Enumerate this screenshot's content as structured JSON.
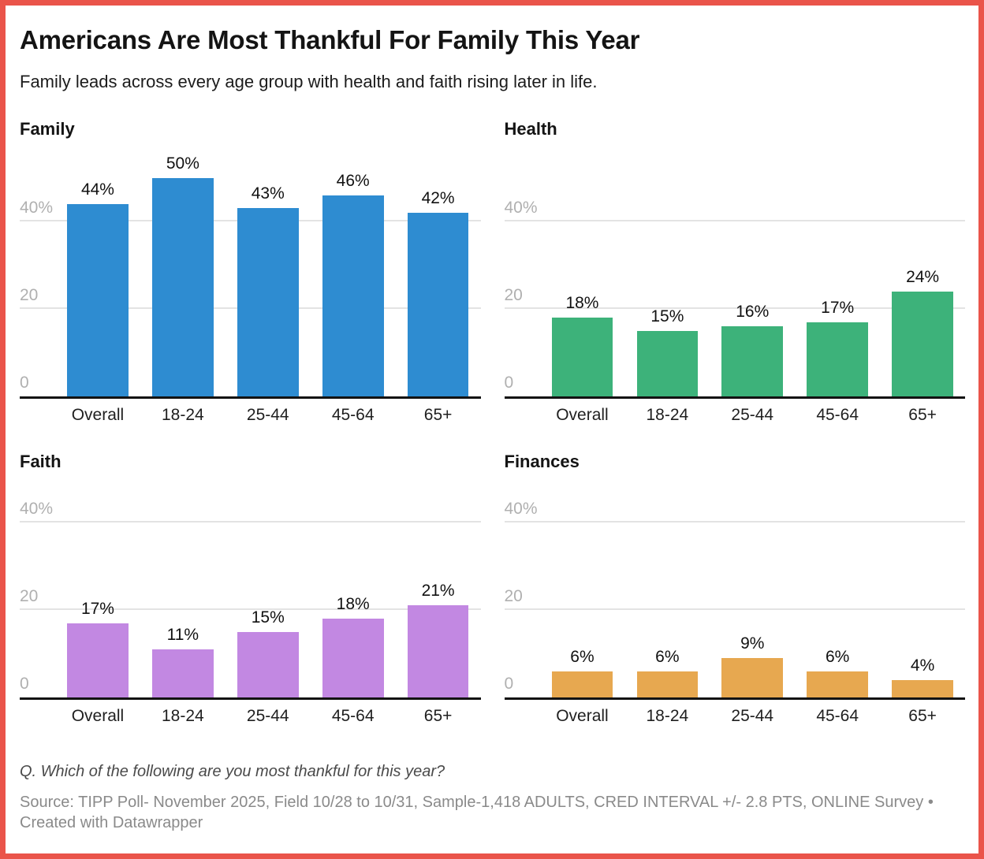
{
  "header": {
    "title": "Americans Are Most Thankful For Family This Year",
    "subtitle": "Family leads across every age group with health and faith rising later in life."
  },
  "chart_data": {
    "type": "bar",
    "unit": "percent",
    "categories": [
      "Overall",
      "18-24",
      "25-44",
      "45-64",
      "65+"
    ],
    "y_axis": {
      "ylim": [
        0,
        56
      ],
      "grid": "horizontal",
      "ticks": [
        {
          "value": 40,
          "label": "40%"
        },
        {
          "value": 20,
          "label": "20"
        },
        {
          "value": 0,
          "label": "0"
        }
      ]
    },
    "charts": [
      {
        "title": "Family",
        "color": "#2e8cd1",
        "values": [
          44,
          50,
          43,
          46,
          42
        ],
        "value_labels": [
          "44%",
          "50%",
          "43%",
          "46%",
          "42%"
        ]
      },
      {
        "title": "Health",
        "color": "#3db27a",
        "values": [
          18,
          15,
          16,
          17,
          24
        ],
        "value_labels": [
          "18%",
          "15%",
          "16%",
          "17%",
          "24%"
        ]
      },
      {
        "title": "Faith",
        "color": "#c288e2",
        "values": [
          17,
          11,
          15,
          18,
          21
        ],
        "value_labels": [
          "17%",
          "11%",
          "15%",
          "18%",
          "21%"
        ]
      },
      {
        "title": "Finances",
        "color": "#e7a850",
        "values": [
          6,
          6,
          9,
          6,
          4
        ],
        "value_labels": [
          "6%",
          "6%",
          "9%",
          "6%",
          "4%"
        ]
      }
    ]
  },
  "footer": {
    "question": "Q. Which of the following are you most thankful for this year?",
    "source": "Source: TIPP Poll- November 2025, Field 10/28 to 10/31, Sample-1,418 ADULTS, CRED INTERVAL +/- 2.8 PTS, ONLINE Survey • Created with Datawrapper"
  },
  "style": {
    "border_color": "#ea544a",
    "grid_color": "#e3e3e3",
    "axis_color": "#121212",
    "tick_label_color": "#b0b0b0"
  }
}
